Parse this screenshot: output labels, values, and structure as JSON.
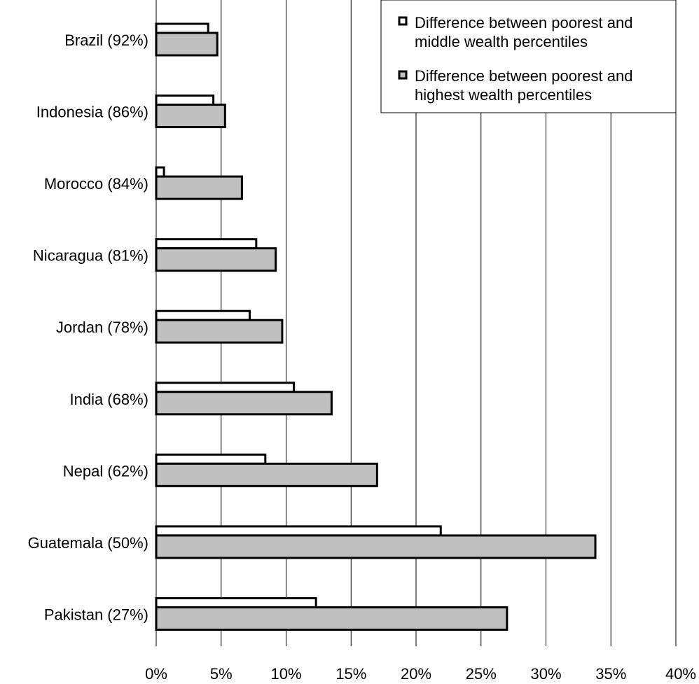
{
  "chart_data": {
    "type": "bar",
    "orientation": "horizontal",
    "categories": [
      "Brazil (92%)",
      "Indonesia (86%)",
      "Morocco (84%)",
      "Nicaragua (81%)",
      "Jordan (78%)",
      "India (68%)",
      "Nepal (62%)",
      "Guatemala (50%)",
      "Pakistan (27%)"
    ],
    "series": [
      {
        "name": "Difference between poorest and middle wealth percentiles",
        "values": [
          4.0,
          4.4,
          0.6,
          7.7,
          7.2,
          10.6,
          8.4,
          21.9,
          12.3
        ],
        "color": "#ffffff"
      },
      {
        "name": "Difference between poorest and highest wealth percentiles",
        "values": [
          4.7,
          5.3,
          6.6,
          9.2,
          9.7,
          13.5,
          17.0,
          33.8,
          27.0
        ],
        "color": "#c0c0c0"
      }
    ],
    "xticks": [
      "0%",
      "5%",
      "10%",
      "15%",
      "20%",
      "25%",
      "30%",
      "35%",
      "40%"
    ],
    "xlim": [
      0,
      40
    ],
    "title": "",
    "xlabel": "",
    "ylabel": "",
    "grid": "vertical",
    "legend_position": "top-right"
  },
  "legend": {
    "line1_a": "Difference between poorest and",
    "line1_b": "middle wealth percentiles",
    "line2_a": "Difference between poorest and",
    "line2_b": "highest wealth percentiles"
  }
}
